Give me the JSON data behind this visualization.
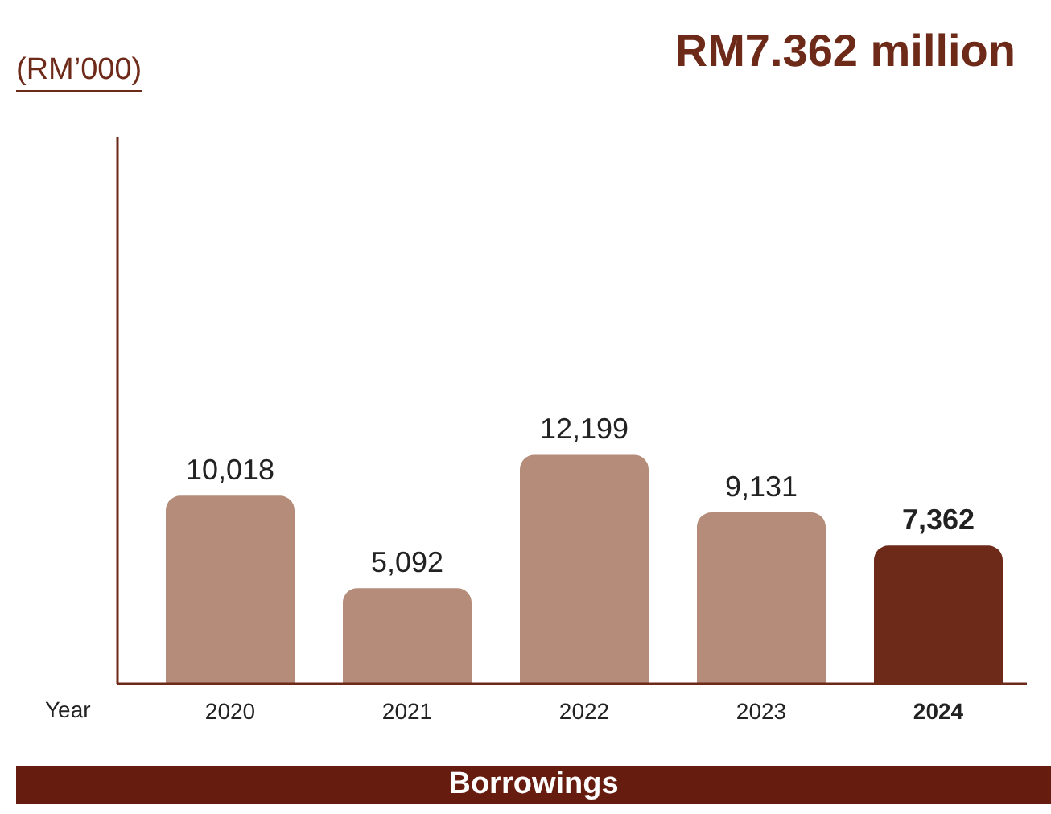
{
  "chart_data": {
    "type": "bar",
    "title": "RM7.362 million",
    "xlabel": "Year",
    "categories": [
      "2020",
      "2021",
      "2022",
      "2023",
      "2024"
    ],
    "values": [
      10018,
      5092,
      12199,
      9131,
      7362
    ],
    "value_labels": [
      "10,018",
      "5,092",
      "12,199",
      "9,131",
      "7,362"
    ],
    "colors": [
      "#b58c79",
      "#b58c79",
      "#b58c79",
      "#b58c79",
      "#6e2a19"
    ],
    "grid": false,
    "legend": false,
    "annotations": [
      "(RM’000)",
      "Borrowings"
    ]
  }
}
